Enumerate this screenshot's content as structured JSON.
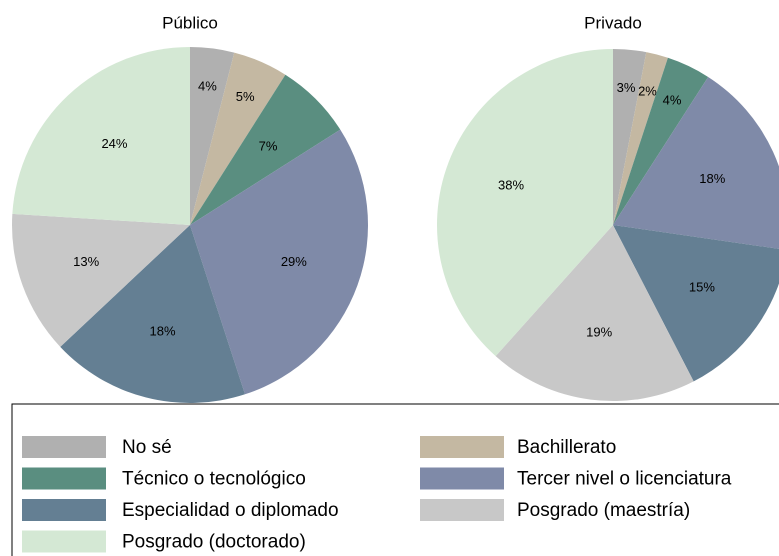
{
  "chart_data": [
    {
      "type": "pie",
      "title": "Público",
      "values": [
        4,
        5,
        7,
        29,
        18,
        13,
        24
      ],
      "value_labels": [
        "4%",
        "5%",
        "7%",
        "29%",
        "18%",
        "13%",
        "24%"
      ]
    },
    {
      "type": "pie",
      "title": "Privado",
      "values": [
        3,
        2,
        4,
        18,
        15,
        19,
        38
      ],
      "value_labels": [
        "3%",
        "2%",
        "4%",
        "18%",
        "15%",
        "19%",
        "38%"
      ]
    }
  ],
  "legend": {
    "items": [
      {
        "name": "No sé",
        "color": "#b0b0b0"
      },
      {
        "name": "Bachillerato",
        "color": "#c4b8a2"
      },
      {
        "name": "Técnico o tecnológico",
        "color": "#5a8e80"
      },
      {
        "name": "Tercer nivel o licenciatura",
        "color": "#7f8aa8"
      },
      {
        "name": "Especialidad o diplomado",
        "color": "#647f93"
      },
      {
        "name": "Posgrado (maestría)",
        "color": "#c8c8c8"
      },
      {
        "name": "Posgrado (doctorado)",
        "color": "#d4e8d4"
      }
    ]
  }
}
